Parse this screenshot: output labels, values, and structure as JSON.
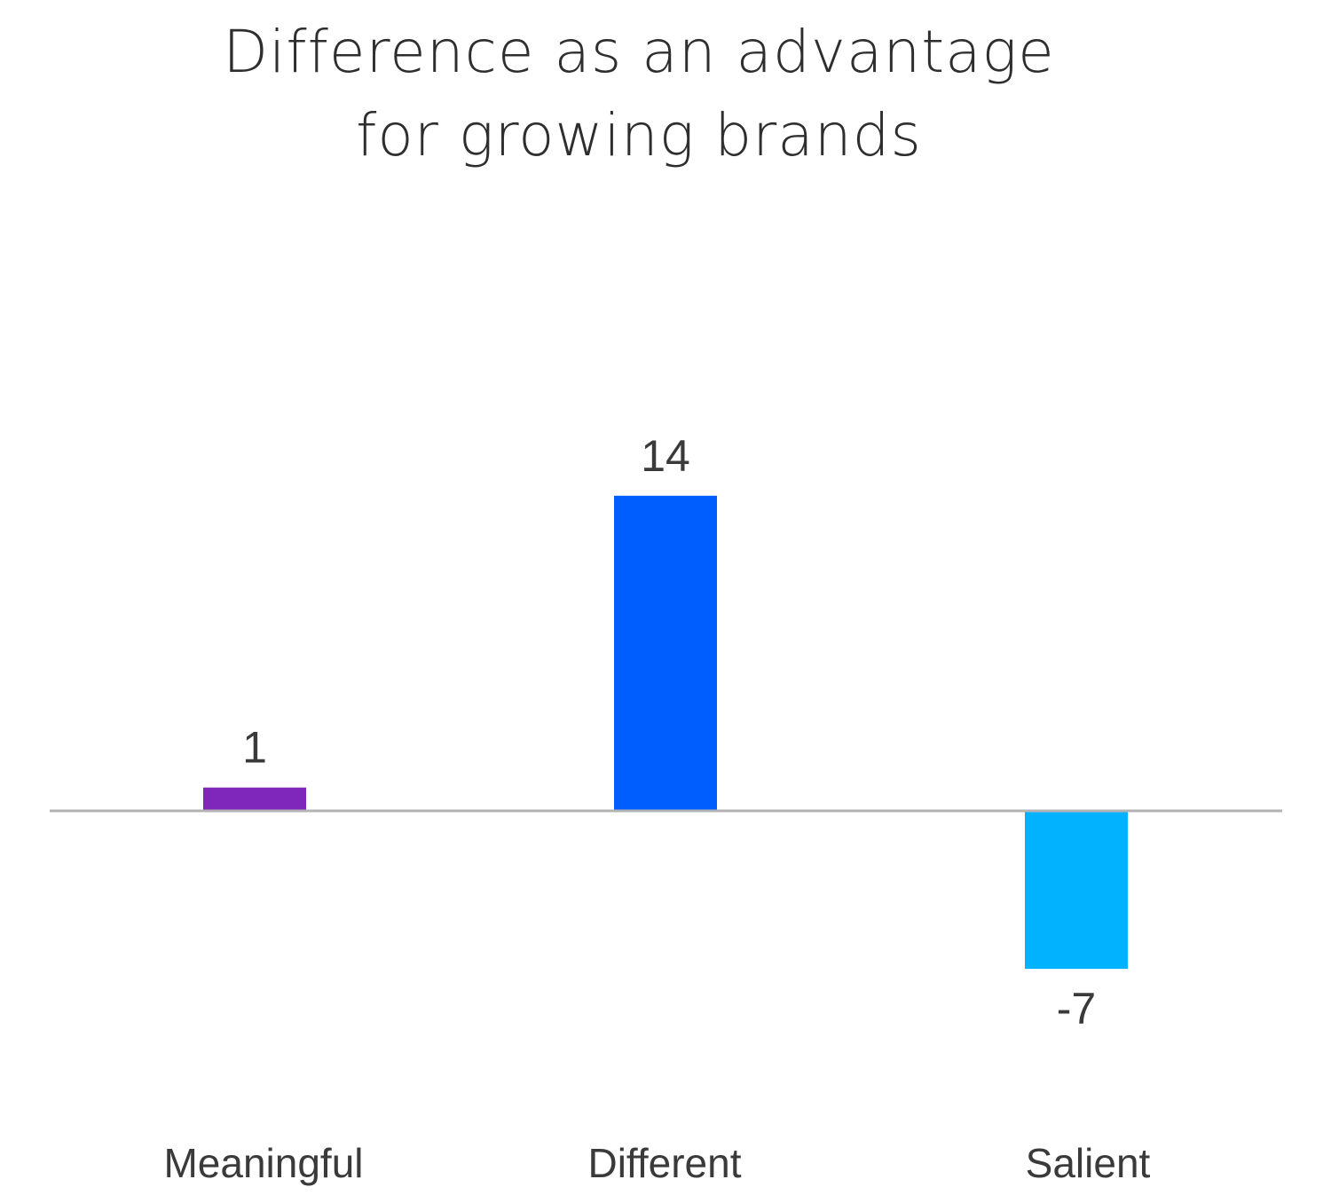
{
  "chart_data": {
    "type": "bar",
    "title_lines": [
      "Difference as an advantage",
      "for growing brands"
    ],
    "categories": [
      "Meaningful",
      "Different",
      "Salient"
    ],
    "values": [
      1,
      14,
      -7
    ],
    "data_labels": [
      "1",
      "14",
      "-7"
    ],
    "colors": [
      "#7F27B8",
      "#005EFF",
      "#00B2FF"
    ],
    "xlabel": "",
    "ylabel": "",
    "ylim": [
      -13,
      21
    ],
    "grid": false,
    "legend": "none",
    "baseline_color": "#B3B3B3",
    "text_color": "#3A3A3A"
  }
}
